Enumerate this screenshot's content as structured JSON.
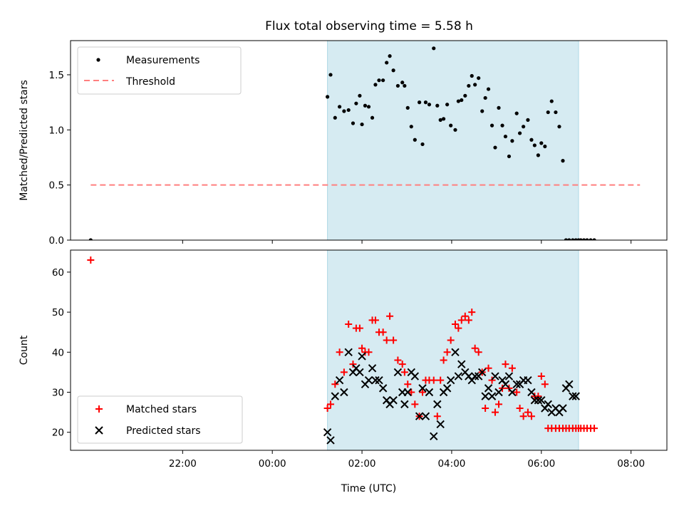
{
  "title": "Flux total observing time = 5.58 h",
  "colors": {
    "shade": "#add8e6",
    "measurement": "#000000",
    "threshold": "#ff7f7f",
    "matched": "#ff0000",
    "predicted": "#000000"
  },
  "chart_data": [
    {
      "type": "scatter",
      "ylabel": "Matched/Predicted stars",
      "xlim": [
        -2.5,
        10.8
      ],
      "ylim": [
        0,
        1.81
      ],
      "yticks": [
        "0.0",
        "0.5",
        "1.0",
        "1.5"
      ],
      "grid": false,
      "legend_position": "top-left",
      "shaded_interval": [
        3.23,
        8.83
      ],
      "threshold": {
        "name": "Threshold",
        "value": 0.5,
        "x_range": [
          -2.05,
          10.2
        ]
      },
      "series": [
        {
          "name": "Measurements",
          "x": [
            -2.05,
            3.23,
            3.3,
            3.4,
            3.5,
            3.6,
            3.7,
            3.8,
            3.87,
            3.95,
            4.0,
            4.07,
            4.15,
            4.23,
            4.3,
            4.38,
            4.47,
            4.55,
            4.62,
            4.7,
            4.8,
            4.9,
            4.95,
            5.02,
            5.1,
            5.18,
            5.28,
            5.35,
            5.42,
            5.5,
            5.6,
            5.68,
            5.75,
            5.82,
            5.9,
            5.98,
            6.08,
            6.15,
            6.22,
            6.3,
            6.38,
            6.45,
            6.52,
            6.6,
            6.68,
            6.75,
            6.82,
            6.9,
            6.97,
            7.05,
            7.13,
            7.2,
            7.28,
            7.35,
            7.45,
            7.52,
            7.6,
            7.7,
            7.78,
            7.85,
            7.93,
            8.0,
            8.08,
            8.15,
            8.23,
            8.32,
            8.4,
            8.48,
            8.55,
            8.62,
            8.7,
            8.77,
            8.83,
            8.88,
            8.95,
            9.02,
            9.1,
            9.18
          ],
          "y": [
            0.0,
            1.3,
            1.5,
            1.11,
            1.21,
            1.17,
            1.18,
            1.06,
            1.24,
            1.31,
            1.05,
            1.22,
            1.21,
            1.11,
            1.41,
            1.45,
            1.45,
            1.61,
            1.67,
            1.54,
            1.4,
            1.43,
            1.4,
            1.2,
            1.03,
            0.91,
            1.25,
            0.87,
            1.25,
            1.23,
            1.74,
            1.22,
            1.09,
            1.1,
            1.23,
            1.04,
            1.0,
            1.26,
            1.27,
            1.31,
            1.4,
            1.49,
            1.41,
            1.47,
            1.17,
            1.29,
            1.37,
            1.04,
            0.84,
            1.2,
            1.04,
            0.94,
            0.76,
            0.9,
            1.15,
            0.97,
            1.03,
            1.09,
            0.91,
            0.86,
            0.77,
            0.88,
            0.85,
            1.16,
            1.26,
            1.16,
            1.03,
            0.72,
            0.0,
            0.0,
            0.0,
            0.0,
            0.0,
            0.0,
            0.0,
            0.0,
            0.0,
            0.0
          ]
        }
      ]
    },
    {
      "type": "scatter",
      "xlabel": "Time (UTC)",
      "ylabel": "Count",
      "xlim": [
        -2.5,
        10.8
      ],
      "ylim": [
        15.5,
        65.5
      ],
      "xticks": [
        {
          "value": -0.0,
          "label": "22:00"
        },
        {
          "value": 2.0,
          "label": "00:00"
        },
        {
          "value": 4.0,
          "label": "02:00"
        },
        {
          "value": 6.0,
          "label": "04:00"
        },
        {
          "value": 8.0,
          "label": "06:00"
        },
        {
          "value": 10.0,
          "label": "08:00"
        }
      ],
      "yticks": [
        "20",
        "30",
        "40",
        "50",
        "60"
      ],
      "grid": false,
      "legend_position": "bottom-left",
      "shaded_interval": [
        3.23,
        8.83
      ],
      "series": [
        {
          "name": "Matched stars",
          "x": [
            -2.05,
            3.23,
            3.3,
            3.4,
            3.5,
            3.6,
            3.7,
            3.8,
            3.87,
            3.95,
            4.0,
            4.07,
            4.15,
            4.23,
            4.3,
            4.38,
            4.47,
            4.55,
            4.62,
            4.7,
            4.8,
            4.9,
            4.95,
            5.02,
            5.1,
            5.18,
            5.28,
            5.35,
            5.42,
            5.5,
            5.6,
            5.68,
            5.75,
            5.82,
            5.9,
            5.98,
            6.08,
            6.15,
            6.22,
            6.3,
            6.38,
            6.45,
            6.52,
            6.6,
            6.68,
            6.75,
            6.82,
            6.9,
            6.97,
            7.05,
            7.13,
            7.2,
            7.28,
            7.35,
            7.45,
            7.52,
            7.6,
            7.7,
            7.78,
            7.85,
            7.93,
            8.0,
            8.08,
            8.15,
            8.23,
            8.32,
            8.4,
            8.48,
            8.55,
            8.62,
            8.7,
            8.77,
            8.83,
            8.88,
            8.95,
            9.02,
            9.1,
            9.18
          ],
          "y": [
            63,
            26,
            27,
            32,
            40,
            35,
            47,
            37,
            46,
            46,
            41,
            40,
            40,
            48,
            48,
            45,
            45,
            43,
            49,
            43,
            38,
            37,
            35,
            32,
            30,
            27,
            24,
            30,
            33,
            33,
            33,
            24,
            33,
            38,
            40,
            43,
            47,
            46,
            48,
            49,
            48,
            50,
            41,
            40,
            35,
            26,
            36,
            33,
            25,
            27,
            31,
            37,
            31,
            36,
            30,
            26,
            24,
            25,
            24,
            29,
            29,
            34,
            32,
            21,
            21,
            21,
            21,
            21,
            21,
            21,
            21,
            21,
            21,
            21,
            21,
            21,
            21,
            21
          ],
          "x_shown": [
            -2.05,
            3.23,
            3.3,
            3.4,
            3.5,
            3.6,
            3.7,
            3.8,
            3.87,
            3.95,
            4.0,
            4.07,
            4.15,
            4.23,
            4.3,
            4.38,
            4.47,
            4.55,
            4.62,
            4.7,
            4.8,
            4.9,
            4.95,
            5.02,
            5.1,
            5.18,
            5.28,
            5.35,
            5.42,
            5.5,
            5.6,
            5.68,
            5.75,
            5.82,
            5.9,
            5.98,
            6.08,
            6.15,
            6.22,
            6.3,
            6.38,
            6.45,
            6.52,
            6.6,
            6.68,
            6.75,
            6.82,
            6.9,
            6.97,
            7.05,
            7.13,
            7.2,
            7.28,
            7.35,
            7.45,
            7.52,
            7.6,
            7.7,
            7.78,
            7.85,
            7.93,
            8.0,
            8.08,
            8.15,
            8.23,
            8.32,
            8.4,
            8.48,
            8.55,
            8.62,
            8.7,
            8.77,
            8.83,
            8.88,
            8.95,
            9.02,
            9.1,
            9.18
          ]
        },
        {
          "name": "Predicted stars",
          "x": [
            3.23,
            3.3,
            3.4,
            3.5,
            3.6,
            3.7,
            3.8,
            3.87,
            3.95,
            4.0,
            4.07,
            4.15,
            4.23,
            4.3,
            4.38,
            4.47,
            4.55,
            4.62,
            4.7,
            4.8,
            4.9,
            4.95,
            5.02,
            5.1,
            5.18,
            5.28,
            5.35,
            5.42,
            5.5,
            5.6,
            5.68,
            5.75,
            5.82,
            5.9,
            5.98,
            6.08,
            6.15,
            6.22,
            6.3,
            6.38,
            6.45,
            6.52,
            6.6,
            6.68,
            6.75,
            6.82,
            6.9,
            6.97,
            7.05,
            7.13,
            7.2,
            7.28,
            7.35,
            7.45,
            7.52,
            7.6,
            7.7,
            7.78,
            7.85,
            7.93,
            8.0,
            8.08,
            8.15,
            8.23,
            8.32,
            8.4,
            8.48,
            8.55,
            8.62,
            8.7,
            8.77
          ],
          "y": [
            20,
            18,
            29,
            33,
            30,
            40,
            35,
            36,
            35,
            39,
            32,
            33,
            36,
            33,
            33,
            31,
            28,
            27,
            28,
            35,
            30,
            27,
            30,
            35,
            34,
            24,
            31,
            24,
            30,
            19,
            27,
            22,
            30,
            31,
            33,
            40,
            34,
            37,
            35,
            34,
            33,
            34,
            34,
            35,
            29,
            31,
            29,
            34,
            30,
            33,
            32,
            34,
            30,
            32,
            32,
            33,
            33,
            30,
            28,
            28,
            28,
            26,
            27,
            25,
            26,
            25,
            26,
            31,
            32,
            29,
            29
          ]
        }
      ]
    }
  ]
}
